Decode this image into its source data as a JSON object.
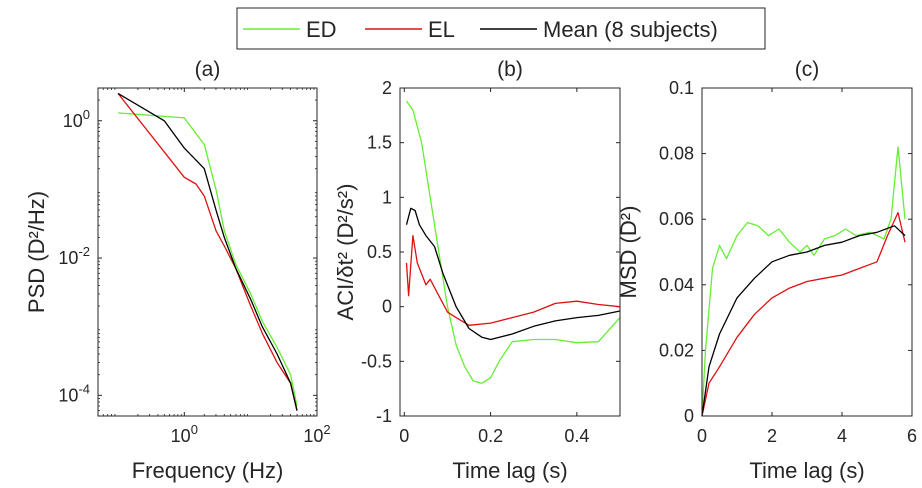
{
  "legend": {
    "entries": [
      {
        "name": "ED",
        "color": "#66ee33"
      },
      {
        "name": "EL",
        "color": "#dd1111"
      },
      {
        "name": "Mean (8 subjects)",
        "color": "#000000"
      }
    ]
  },
  "chart_data": [
    {
      "type": "line",
      "title": "(a)",
      "xlabel": "Frequency (Hz)",
      "ylabel": "PSD (D²/Hz)",
      "xscale": "log",
      "yscale": "log",
      "xlim": [
        0.05,
        100
      ],
      "ylim": [
        5e-05,
        3
      ],
      "xticks": [
        {
          "v": 1,
          "base": "10",
          "exp": "0"
        },
        {
          "v": 100,
          "base": "10",
          "exp": "2"
        }
      ],
      "yticks": [
        {
          "v": 1,
          "base": "10",
          "exp": "0"
        },
        {
          "v": 0.01,
          "base": "10",
          "exp": "-2"
        },
        {
          "v": 0.0001,
          "base": "10",
          "exp": "-4"
        }
      ],
      "series": [
        {
          "name": "ED",
          "color": "#66ee33",
          "points": [
            [
              0.1,
              1.3
            ],
            [
              1.0,
              1.1
            ],
            [
              2.0,
              0.45
            ],
            [
              3.0,
              0.1
            ],
            [
              4.0,
              0.025
            ],
            [
              6.0,
              0.008
            ],
            [
              10.0,
              0.003
            ],
            [
              15.0,
              0.0012
            ],
            [
              25.0,
              0.0005
            ],
            [
              40.0,
              0.0002
            ],
            [
              50.0,
              7e-05
            ]
          ]
        },
        {
          "name": "EL",
          "color": "#dd1111",
          "points": [
            [
              0.1,
              2.5
            ],
            [
              1.0,
              0.15
            ],
            [
              1.5,
              0.12
            ],
            [
              2.0,
              0.08
            ],
            [
              3.0,
              0.025
            ],
            [
              4.0,
              0.015
            ],
            [
              6.0,
              0.007
            ],
            [
              10.0,
              0.002
            ],
            [
              15.0,
              0.0008
            ],
            [
              25.0,
              0.0003
            ],
            [
              40.0,
              0.00015
            ],
            [
              50.0,
              6e-05
            ]
          ]
        },
        {
          "name": "Mean (8 subjects)",
          "color": "#000000",
          "points": [
            [
              0.1,
              2.5
            ],
            [
              0.5,
              1.0
            ],
            [
              1.0,
              0.4
            ],
            [
              2.0,
              0.2
            ],
            [
              3.0,
              0.05
            ],
            [
              4.0,
              0.02
            ],
            [
              6.0,
              0.007
            ],
            [
              10.0,
              0.0025
            ],
            [
              15.0,
              0.001
            ],
            [
              25.0,
              0.0004
            ],
            [
              40.0,
              0.00015
            ],
            [
              50.0,
              6e-05
            ]
          ]
        }
      ]
    },
    {
      "type": "line",
      "title": "(b)",
      "xlabel": "Time lag (s)",
      "ylabel": "ACI/δt² (D²/s²)",
      "xlim": [
        -0.01,
        0.5
      ],
      "ylim": [
        -1,
        2
      ],
      "xticks": [
        {
          "v": 0,
          "label": "0"
        },
        {
          "v": 0.2,
          "label": "0.2"
        },
        {
          "v": 0.4,
          "label": "0.4"
        }
      ],
      "yticks": [
        {
          "v": -1,
          "label": "-1"
        },
        {
          "v": -0.5,
          "label": "-0.5"
        },
        {
          "v": 0,
          "label": "0"
        },
        {
          "v": 0.5,
          "label": "0.5"
        },
        {
          "v": 1,
          "label": "1"
        },
        {
          "v": 1.5,
          "label": "1.5"
        },
        {
          "v": 2,
          "label": "2"
        }
      ],
      "series": [
        {
          "name": "ED",
          "color": "#66ee33",
          "points": [
            [
              0.005,
              1.88
            ],
            [
              0.02,
              1.8
            ],
            [
              0.04,
              1.5
            ],
            [
              0.06,
              1.0
            ],
            [
              0.08,
              0.5
            ],
            [
              0.1,
              0.0
            ],
            [
              0.12,
              -0.35
            ],
            [
              0.14,
              -0.55
            ],
            [
              0.16,
              -0.68
            ],
            [
              0.18,
              -0.7
            ],
            [
              0.2,
              -0.65
            ],
            [
              0.22,
              -0.5
            ],
            [
              0.25,
              -0.32
            ],
            [
              0.3,
              -0.3
            ],
            [
              0.35,
              -0.3
            ],
            [
              0.4,
              -0.33
            ],
            [
              0.45,
              -0.32
            ],
            [
              0.5,
              -0.1
            ]
          ]
        },
        {
          "name": "EL",
          "color": "#dd1111",
          "points": [
            [
              0.005,
              0.4
            ],
            [
              0.01,
              0.1
            ],
            [
              0.02,
              0.65
            ],
            [
              0.03,
              0.4
            ],
            [
              0.04,
              0.3
            ],
            [
              0.05,
              0.2
            ],
            [
              0.06,
              0.25
            ],
            [
              0.08,
              0.1
            ],
            [
              0.1,
              -0.05
            ],
            [
              0.12,
              -0.1
            ],
            [
              0.15,
              -0.17
            ],
            [
              0.2,
              -0.15
            ],
            [
              0.25,
              -0.1
            ],
            [
              0.3,
              -0.05
            ],
            [
              0.35,
              0.03
            ],
            [
              0.4,
              0.05
            ],
            [
              0.45,
              0.02
            ],
            [
              0.5,
              0.0
            ]
          ]
        },
        {
          "name": "Mean (8 subjects)",
          "color": "#000000",
          "points": [
            [
              0.005,
              0.75
            ],
            [
              0.015,
              0.9
            ],
            [
              0.025,
              0.88
            ],
            [
              0.035,
              0.75
            ],
            [
              0.05,
              0.65
            ],
            [
              0.07,
              0.55
            ],
            [
              0.09,
              0.3
            ],
            [
              0.12,
              0.0
            ],
            [
              0.15,
              -0.2
            ],
            [
              0.18,
              -0.28
            ],
            [
              0.2,
              -0.3
            ],
            [
              0.25,
              -0.25
            ],
            [
              0.3,
              -0.18
            ],
            [
              0.35,
              -0.13
            ],
            [
              0.4,
              -0.1
            ],
            [
              0.45,
              -0.08
            ],
            [
              0.5,
              -0.04
            ]
          ]
        }
      ]
    },
    {
      "type": "line",
      "title": "(c)",
      "xlabel": "Time lag (s)",
      "ylabel": "MSD (D²)",
      "xlim": [
        0,
        6
      ],
      "ylim": [
        0,
        0.1
      ],
      "xticks": [
        {
          "v": 0,
          "label": "0"
        },
        {
          "v": 2,
          "label": "2"
        },
        {
          "v": 4,
          "label": "4"
        },
        {
          "v": 6,
          "label": "6"
        }
      ],
      "yticks": [
        {
          "v": 0,
          "label": "0"
        },
        {
          "v": 0.02,
          "label": "0.02"
        },
        {
          "v": 0.04,
          "label": "0.04"
        },
        {
          "v": 0.06,
          "label": "0.06"
        },
        {
          "v": 0.08,
          "label": "0.08"
        },
        {
          "v": 0.1,
          "label": "0.1"
        }
      ],
      "series": [
        {
          "name": "ED",
          "color": "#66ee33",
          "points": [
            [
              0,
              0
            ],
            [
              0.1,
              0.02
            ],
            [
              0.3,
              0.045
            ],
            [
              0.5,
              0.052
            ],
            [
              0.7,
              0.048
            ],
            [
              1.0,
              0.055
            ],
            [
              1.3,
              0.059
            ],
            [
              1.6,
              0.058
            ],
            [
              1.9,
              0.055
            ],
            [
              2.2,
              0.057
            ],
            [
              2.5,
              0.053
            ],
            [
              2.8,
              0.05
            ],
            [
              3.0,
              0.052
            ],
            [
              3.2,
              0.049
            ],
            [
              3.5,
              0.054
            ],
            [
              3.8,
              0.055
            ],
            [
              4.1,
              0.057
            ],
            [
              4.4,
              0.055
            ],
            [
              4.8,
              0.056
            ],
            [
              5.2,
              0.054
            ],
            [
              5.4,
              0.06
            ],
            [
              5.6,
              0.082
            ],
            [
              5.8,
              0.06
            ]
          ]
        },
        {
          "name": "EL",
          "color": "#dd1111",
          "points": [
            [
              0,
              0
            ],
            [
              0.2,
              0.01
            ],
            [
              0.5,
              0.015
            ],
            [
              1.0,
              0.024
            ],
            [
              1.5,
              0.031
            ],
            [
              2.0,
              0.036
            ],
            [
              2.5,
              0.039
            ],
            [
              3.0,
              0.041
            ],
            [
              3.5,
              0.042
            ],
            [
              4.0,
              0.043
            ],
            [
              4.5,
              0.045
            ],
            [
              5.0,
              0.047
            ],
            [
              5.3,
              0.055
            ],
            [
              5.6,
              0.062
            ],
            [
              5.8,
              0.053
            ]
          ]
        },
        {
          "name": "Mean (8 subjects)",
          "color": "#000000",
          "points": [
            [
              0,
              0
            ],
            [
              0.2,
              0.015
            ],
            [
              0.5,
              0.025
            ],
            [
              1.0,
              0.036
            ],
            [
              1.5,
              0.042
            ],
            [
              2.0,
              0.047
            ],
            [
              2.5,
              0.049
            ],
            [
              3.0,
              0.05
            ],
            [
              3.5,
              0.052
            ],
            [
              4.0,
              0.053
            ],
            [
              4.5,
              0.055
            ],
            [
              5.0,
              0.056
            ],
            [
              5.5,
              0.058
            ],
            [
              5.8,
              0.055
            ]
          ]
        }
      ]
    }
  ]
}
